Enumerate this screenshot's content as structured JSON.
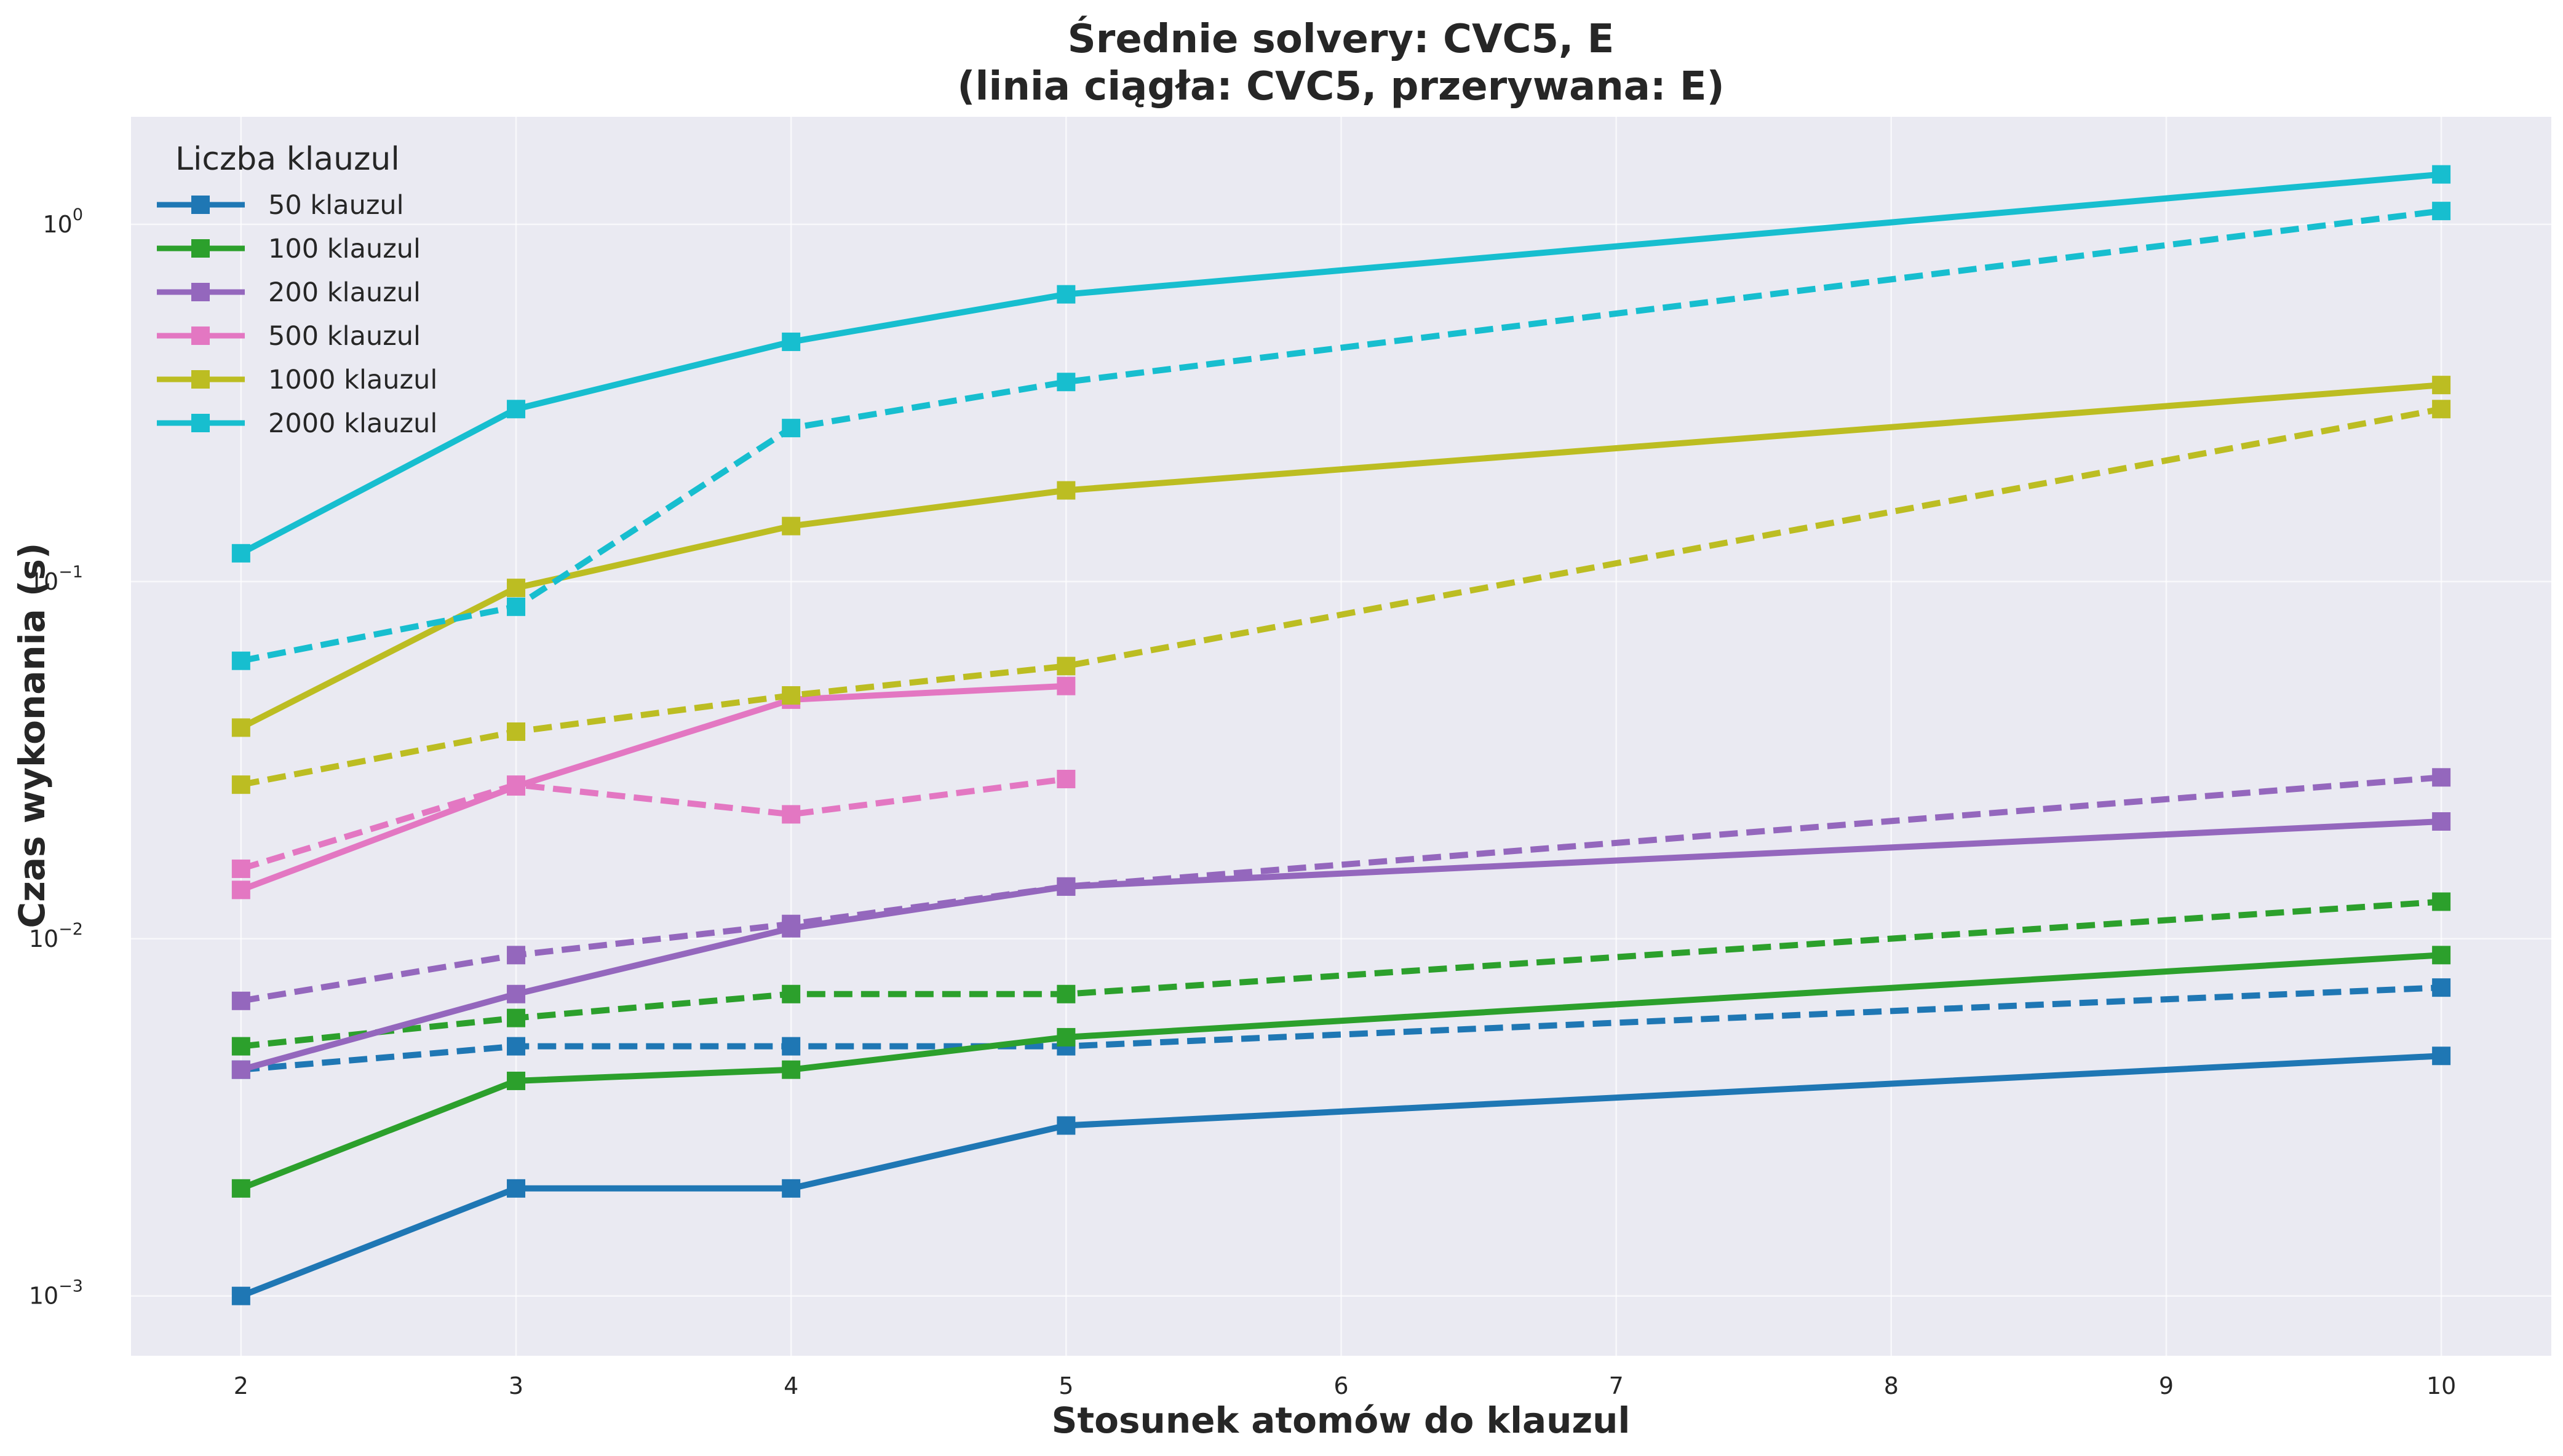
{
  "chart_data": {
    "type": "line",
    "title_line1": "Średnie solvery: CVC5, E",
    "title_line2": "(linia ciągła: CVC5, przerywana: E)",
    "xlabel": "Stosunek atomów do klauzul",
    "ylabel": "Czas wykonania (s)",
    "y_scale": "log",
    "xlim": [
      1.6,
      10.4
    ],
    "ylim": [
      0.00068,
      2.0
    ],
    "x_ticks": [
      2,
      3,
      4,
      5,
      6,
      7,
      8,
      9,
      10
    ],
    "y_ticks": [
      {
        "value": 0.001,
        "base": "10",
        "exp": "−3"
      },
      {
        "value": 0.01,
        "base": "10",
        "exp": "−2"
      },
      {
        "value": 0.1,
        "base": "10",
        "exp": "−1"
      },
      {
        "value": 1,
        "base": "10",
        "exp": "0"
      }
    ],
    "grid": true,
    "background": "#eaeaf2",
    "legend": {
      "title": "Liczba klauzul",
      "placement": "top-left",
      "entries": [
        "50 klauzul",
        "100 klauzul",
        "200 klauzul",
        "500 klauzul",
        "1000 klauzul",
        "2000 klauzul"
      ]
    },
    "series": [
      {
        "name": "50 klauzul",
        "solver": "CVC5",
        "dash": "solid",
        "color": "#1f77b4",
        "x": [
          2,
          3,
          4,
          5,
          10
        ],
        "y": [
          0.001,
          0.002,
          0.002,
          0.003,
          0.0047
        ]
      },
      {
        "name": "50 klauzul",
        "solver": "E",
        "dash": "dashed",
        "color": "#1f77b4",
        "x": [
          2,
          3,
          4,
          5,
          10
        ],
        "y": [
          0.0043,
          0.005,
          0.005,
          0.005,
          0.0073
        ]
      },
      {
        "name": "100 klauzul",
        "solver": "CVC5",
        "dash": "solid",
        "color": "#2ca02c",
        "x": [
          2,
          3,
          4,
          5,
          10
        ],
        "y": [
          0.002,
          0.004,
          0.0043,
          0.0053,
          0.009
        ]
      },
      {
        "name": "100 klauzul",
        "solver": "E",
        "dash": "dashed",
        "color": "#2ca02c",
        "x": [
          2,
          3,
          4,
          5,
          10
        ],
        "y": [
          0.005,
          0.006,
          0.007,
          0.007,
          0.0127
        ]
      },
      {
        "name": "200 klauzul",
        "solver": "CVC5",
        "dash": "solid",
        "color": "#9467bd",
        "x": [
          2,
          3,
          4,
          5,
          10
        ],
        "y": [
          0.0043,
          0.007,
          0.0107,
          0.014,
          0.0213
        ]
      },
      {
        "name": "200 klauzul",
        "solver": "E",
        "dash": "dashed",
        "color": "#9467bd",
        "x": [
          2,
          3,
          4,
          5,
          10
        ],
        "y": [
          0.0067,
          0.009,
          0.011,
          0.014,
          0.0283
        ]
      },
      {
        "name": "500 klauzul",
        "solver": "CVC5",
        "dash": "solid",
        "color": "#e377c2",
        "x": [
          2,
          3,
          4,
          5
        ],
        "y": [
          0.0137,
          0.0267,
          0.0467,
          0.051
        ]
      },
      {
        "name": "500 klauzul",
        "solver": "E",
        "dash": "dashed",
        "color": "#e377c2",
        "x": [
          2,
          3,
          4,
          5
        ],
        "y": [
          0.0157,
          0.027,
          0.0223,
          0.028
        ]
      },
      {
        "name": "1000 klauzul",
        "solver": "CVC5",
        "dash": "solid",
        "color": "#bcbd22",
        "x": [
          2,
          3,
          4,
          5,
          10
        ],
        "y": [
          0.039,
          0.096,
          0.143,
          0.18,
          0.355
        ]
      },
      {
        "name": "1000 klauzul",
        "solver": "E",
        "dash": "dashed",
        "color": "#bcbd22",
        "x": [
          2,
          3,
          4,
          5,
          10
        ],
        "y": [
          0.027,
          0.038,
          0.048,
          0.058,
          0.304
        ]
      },
      {
        "name": "2000 klauzul",
        "solver": "CVC5",
        "dash": "solid",
        "color": "#17becf",
        "x": [
          2,
          3,
          4,
          5,
          10
        ],
        "y": [
          0.12,
          0.304,
          0.469,
          0.637,
          1.38
        ]
      },
      {
        "name": "2000 klauzul",
        "solver": "E",
        "dash": "dashed",
        "color": "#17becf",
        "x": [
          2,
          3,
          4,
          5,
          10
        ],
        "y": [
          0.06,
          0.085,
          0.269,
          0.362,
          1.09
        ]
      }
    ]
  }
}
